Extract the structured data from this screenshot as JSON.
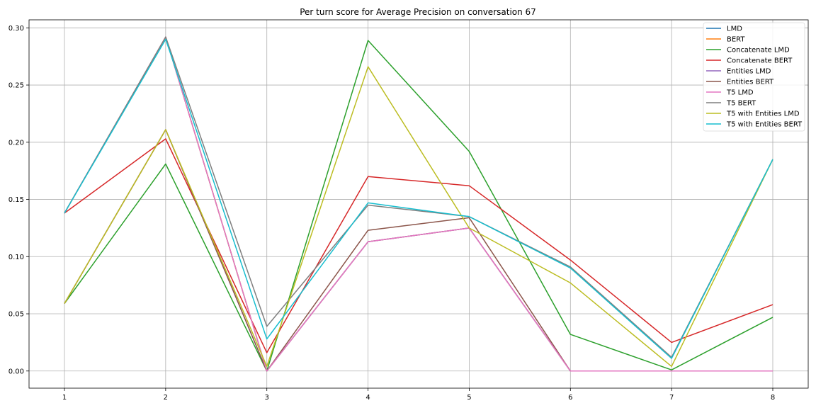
{
  "chart_data": {
    "type": "line",
    "title": "Per turn score for Average Precision on conversation 67",
    "xlabel": "",
    "ylabel": "",
    "x": [
      1,
      2,
      3,
      4,
      5,
      6,
      7,
      8
    ],
    "xlim": [
      0.65,
      8.35
    ],
    "ylim": [
      -0.015,
      0.307
    ],
    "yticks": [
      "0.00",
      "0.05",
      "0.10",
      "0.15",
      "0.20",
      "0.25",
      "0.30"
    ],
    "xticks": [
      "1",
      "2",
      "3",
      "4",
      "5",
      "6",
      "7",
      "8"
    ],
    "grid": true,
    "legend_position": "top-right",
    "series": [
      {
        "name": "LMD",
        "color": "#1f77b4",
        "values": [
          0.138,
          0.292,
          0.0,
          0.113,
          0.125,
          0.0,
          0.0,
          0.0
        ]
      },
      {
        "name": "BERT",
        "color": "#ff7f0e",
        "values": [
          0.138,
          0.292,
          0.0,
          0.113,
          0.125,
          0.0,
          0.0,
          0.0
        ]
      },
      {
        "name": "Concatenate LMD",
        "color": "#2ca02c",
        "values": [
          0.059,
          0.181,
          0.0,
          0.289,
          0.192,
          0.032,
          0.001,
          0.047
        ]
      },
      {
        "name": "Concatenate BERT",
        "color": "#d62728",
        "values": [
          0.138,
          0.203,
          0.016,
          0.17,
          0.162,
          0.097,
          0.025,
          0.058
        ]
      },
      {
        "name": "Entities LMD",
        "color": "#9467bd",
        "values": [
          0.059,
          0.211,
          0.0,
          0.113,
          0.125,
          0.0,
          0.0,
          0.0
        ]
      },
      {
        "name": "Entities BERT",
        "color": "#8c564b",
        "values": [
          0.059,
          0.211,
          0.0,
          0.123,
          0.134,
          0.0,
          0.0,
          0.0
        ]
      },
      {
        "name": "T5 LMD",
        "color": "#e377c2",
        "values": [
          0.138,
          0.292,
          0.0,
          0.113,
          0.125,
          0.0,
          0.0,
          0.0
        ]
      },
      {
        "name": "T5 BERT",
        "color": "#7f7f7f",
        "values": [
          0.138,
          0.292,
          0.039,
          0.145,
          0.135,
          0.091,
          0.012,
          0.185
        ]
      },
      {
        "name": "T5 with Entities LMD",
        "color": "#bcbd22",
        "values": [
          0.059,
          0.211,
          0.004,
          0.266,
          0.125,
          0.077,
          0.004,
          0.185
        ]
      },
      {
        "name": "T5 with Entities BERT",
        "color": "#17becf",
        "values": [
          0.138,
          0.29,
          0.028,
          0.147,
          0.135,
          0.09,
          0.011,
          0.185
        ]
      }
    ]
  }
}
